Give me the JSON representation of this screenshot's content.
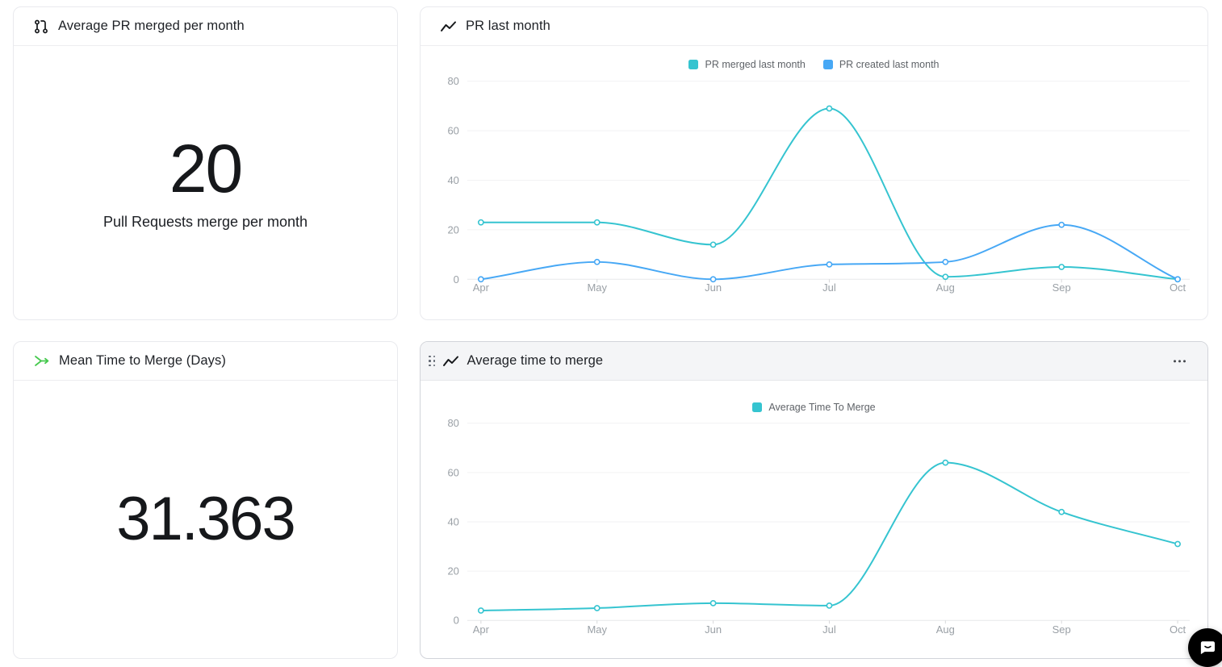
{
  "cards": {
    "avg_pr_merged": {
      "title": "Average PR merged per month",
      "value": "20",
      "subtitle": "Pull Requests merge per month",
      "icon": "pull-request-icon"
    },
    "pr_last_month": {
      "title": "PR last month",
      "icon": "trend-line-icon"
    },
    "mean_time_to_merge": {
      "title": "Mean Time to Merge (Days)",
      "value": "31.363",
      "icon": "merge-arrow-icon"
    },
    "average_time_to_merge": {
      "title": "Average time to merge",
      "icon": "trend-line-icon",
      "has_drag_handle": true,
      "has_menu": true
    }
  },
  "colors": {
    "teal": "#35c4d0",
    "blue": "#47a8f5",
    "green_icon": "#47c94f",
    "axis_label": "#9aa0a6",
    "legend_text": "#5f6368",
    "grid": "#f2f2f3",
    "zero_line": "#e7e8ea",
    "tick": "#d8d9db"
  },
  "chart_data": [
    {
      "type": "line",
      "title": "PR last month",
      "categories": [
        "Apr",
        "May",
        "Jun",
        "Jul",
        "Aug",
        "Sep",
        "Oct"
      ],
      "series": [
        {
          "name": "PR merged last month",
          "color": "#35c4d0",
          "values": [
            23,
            23,
            14,
            69,
            1,
            5,
            0
          ]
        },
        {
          "name": "PR created last month",
          "color": "#47a8f5",
          "values": [
            0,
            7,
            0,
            6,
            7,
            22,
            0
          ]
        }
      ],
      "ylim": [
        0,
        80
      ],
      "yticks": [
        0,
        20,
        40,
        60,
        80
      ],
      "grid": true,
      "legend_position": "top",
      "curve": "monotone"
    },
    {
      "type": "line",
      "title": "Average time to merge",
      "categories": [
        "Apr",
        "May",
        "Jun",
        "Jul",
        "Aug",
        "Sep",
        "Oct"
      ],
      "series": [
        {
          "name": "Average Time To Merge",
          "color": "#35c4d0",
          "values": [
            4,
            5,
            7,
            6,
            64,
            44,
            31
          ]
        }
      ],
      "ylim": [
        0,
        80
      ],
      "yticks": [
        0,
        20,
        40,
        60,
        80
      ],
      "grid": true,
      "legend_position": "top",
      "curve": "monotone"
    }
  ]
}
